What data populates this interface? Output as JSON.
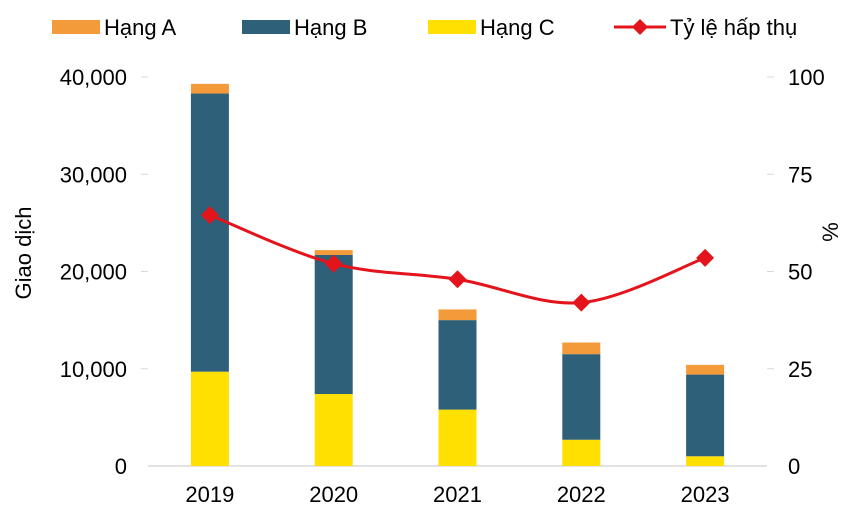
{
  "chart_data": {
    "type": "bar",
    "stacked": true,
    "categories": [
      "2019",
      "2020",
      "2021",
      "2022",
      "2023"
    ],
    "series": [
      {
        "name": "Hạng C",
        "kind": "bar",
        "axis": "left",
        "color": "#FFE000",
        "values": [
          9700,
          7400,
          5800,
          2700,
          1000
        ]
      },
      {
        "name": "Hạng B",
        "kind": "bar",
        "axis": "left",
        "color": "#2E6079",
        "values": [
          28600,
          14300,
          9200,
          8800,
          8400
        ]
      },
      {
        "name": "Hạng A",
        "kind": "bar",
        "axis": "left",
        "color": "#F39A3B",
        "values": [
          1000,
          500,
          1100,
          1200,
          1000
        ]
      },
      {
        "name": "Tỷ lệ hấp thụ",
        "kind": "line",
        "axis": "right",
        "color": "#E3141B",
        "values": [
          64.5,
          52,
          48,
          42,
          53.5
        ]
      }
    ],
    "legend": {
      "position": "top",
      "items": [
        {
          "name": "Hạng A",
          "kind": "bar",
          "color": "#F39A3B"
        },
        {
          "name": "Hạng B",
          "kind": "bar",
          "color": "#2E6079"
        },
        {
          "name": "Hạng C",
          "kind": "bar",
          "color": "#FFE000"
        },
        {
          "name": "Tỷ lệ hấp thụ",
          "kind": "line",
          "color": "#E3141B"
        }
      ]
    },
    "ylabel": "Giao dịch",
    "y2label": "%",
    "ylim": [
      0,
      40000
    ],
    "y2lim": [
      0,
      100
    ],
    "yticks": [
      "0",
      "10,000",
      "20,000",
      "30,000",
      "40,000"
    ],
    "y2ticks": [
      "0",
      "25",
      "50",
      "75",
      "100"
    ],
    "grid": false
  }
}
